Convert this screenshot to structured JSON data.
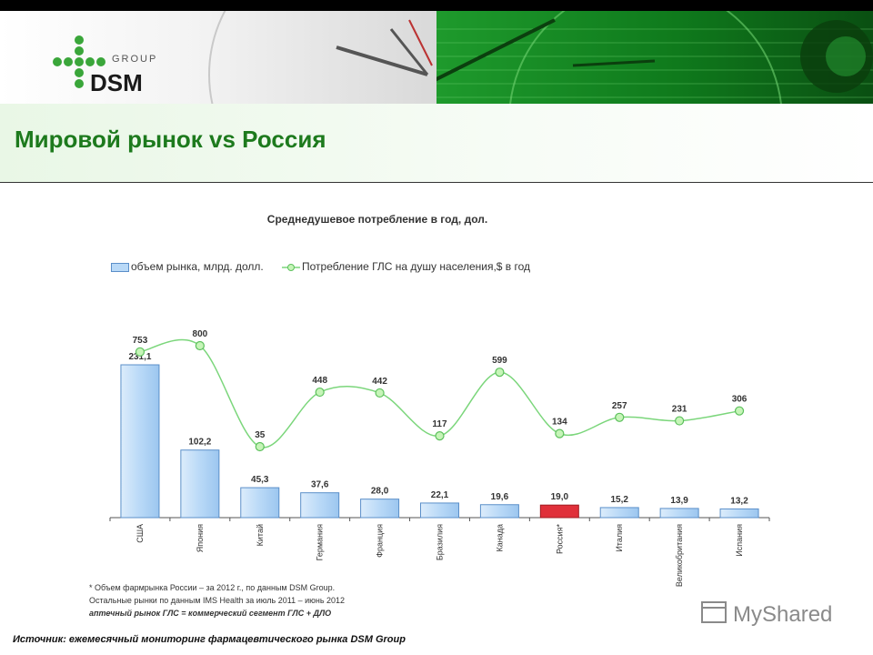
{
  "header": {
    "logo_group_text": "GROUP",
    "logo_brand_text": "DSM",
    "page_title": "Мировой рынок vs Россия"
  },
  "chart_data": {
    "type": "bar",
    "title": "Среднедушевое потребление в год, дол.",
    "categories": [
      "США",
      "Япония",
      "Китай",
      "Германия",
      "Франция",
      "Бразилия",
      "Канада",
      "Россия*",
      "Италия",
      "Великобритания",
      "Испания"
    ],
    "series": [
      {
        "name": "объем рынка, млрд. долл.",
        "type": "bar",
        "values": [
          231.1,
          102.2,
          45.3,
          37.6,
          28.0,
          22.1,
          19.6,
          19.0,
          15.2,
          13.9,
          13.2
        ],
        "labels": [
          "231,1",
          "102,2",
          "45,3",
          "37,6",
          "28,0",
          "22,1",
          "19,6",
          "19,0",
          "15,2",
          "13,9",
          "13,2"
        ]
      },
      {
        "name": "Потребление ГЛС на душу населения,$ в год",
        "type": "line",
        "values": [
          753,
          800,
          35,
          448,
          442,
          117,
          599,
          134,
          257,
          231,
          306
        ],
        "labels": [
          "753",
          "800",
          "35",
          "448",
          "442",
          "117",
          "599",
          "134",
          "257",
          "231",
          "306"
        ]
      }
    ],
    "highlight_index": 7,
    "colors": {
      "bar_fill": "#b9d9f7",
      "bar_stroke": "#5b8fc9",
      "bar_highlight": "#e0303a",
      "line": "#7bd67b",
      "marker_fill": "#c6f5b8",
      "marker_stroke": "#5cc05c"
    },
    "legend_position": "top",
    "grid": false
  },
  "footnotes": [
    "* Объем фармрынка России – за 2012 г., по данным DSM Group.",
    "Остальные рынки по данным IMS Health за июль 2011 – июнь 2012",
    "аптечный рынок ГЛС = коммерческий сегмент ГЛС + ДЛО"
  ],
  "source": "Источник: ежемесячный мониторинг фармацевтического рынка DSM Group",
  "watermark": "MyShared"
}
